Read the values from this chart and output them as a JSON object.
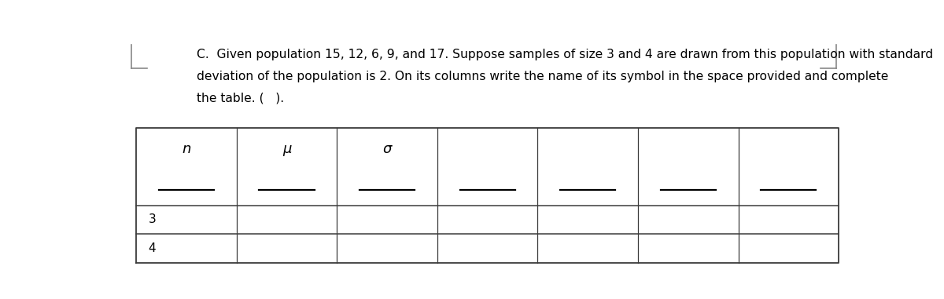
{
  "title_line1": "C.  Given population 15, 12, 6, 9, and 17. Suppose samples of size 3 and 4 are drawn from this population with standard",
  "title_line2": "deviation of the population is 2. On its columns write the name of its symbol in the space provided and complete",
  "title_line3": "the table. (   ).",
  "num_cols": 7,
  "header_symbols": [
    "n",
    "μ",
    "σ",
    "",
    "",
    "",
    ""
  ],
  "row_labels": [
    "3",
    "4"
  ],
  "bg_color": "#ffffff",
  "text_color": "#000000",
  "font_size_text": 11.2,
  "font_size_symbols": 13,
  "font_size_row_labels": 11,
  "line_color": "#3a3a3a"
}
